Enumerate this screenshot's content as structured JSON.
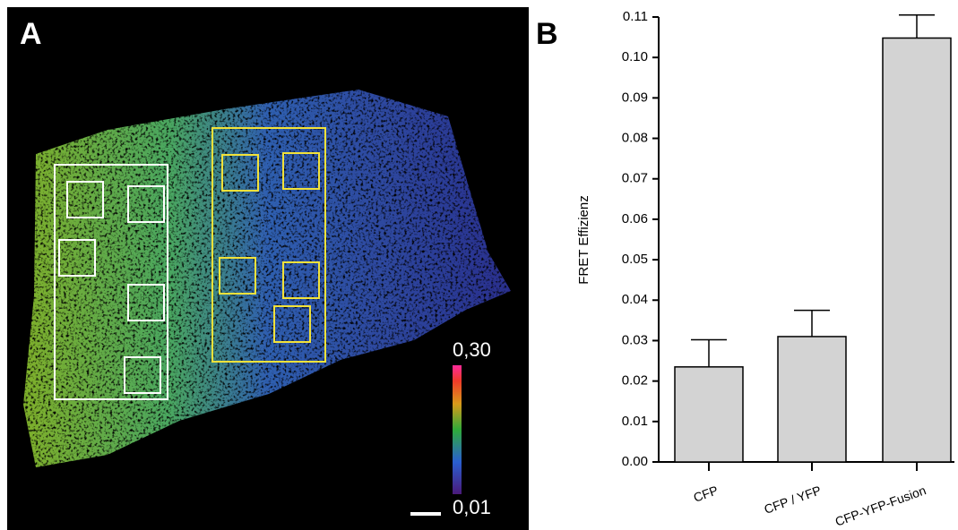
{
  "image_panel": {
    "label": "A",
    "colorbar_ticks": [
      {
        "value": 0.3,
        "label": "0,30"
      },
      {
        "value": 0.01,
        "label": "0,01"
      }
    ]
  },
  "chart_data": {
    "type": "bar",
    "panel_label": "B",
    "ylabel": "FRET Effizienz",
    "categories": [
      "CFP",
      "CFP / YFP",
      "CFP-YFP-Fusion"
    ],
    "values": [
      0.0235,
      0.031,
      0.1048
    ],
    "errors": [
      0.0067,
      0.0065,
      0.0057
    ],
    "color": "#d3d3d3",
    "ylim": [
      0,
      0.11
    ],
    "yticks": [
      {
        "value": 0,
        "label": "0.00"
      },
      0.01,
      0.02,
      0.03,
      0.04,
      0.05,
      0.06,
      0.07,
      0.08,
      0.09,
      {
        "value": 0.1,
        "label": "0.10"
      },
      0.11
    ]
  }
}
